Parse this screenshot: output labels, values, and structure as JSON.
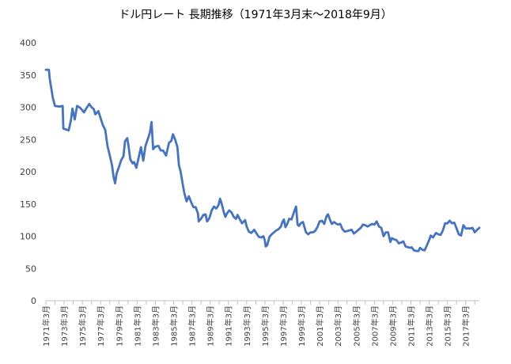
{
  "chart_data": {
    "type": "line",
    "title": "ドル円レート 長期推移（1971年3月末～2018年9月）",
    "xlabel": "",
    "ylabel": "",
    "x_range": [
      "1971-03",
      "2018-09"
    ],
    "ylim": [
      0,
      400
    ],
    "yticks": [
      0,
      50,
      100,
      150,
      200,
      250,
      300,
      350,
      400
    ],
    "xtick_labels": [
      "1971年3月",
      "1973年3月",
      "1975年3月",
      "1977年3月",
      "1979年3月",
      "1981年3月",
      "1983年3月",
      "1985年3月",
      "1987年3月",
      "1989年3月",
      "1991年3月",
      "1993年3月",
      "1995年3月",
      "1997年3月",
      "1999年3月",
      "2001年3月",
      "2003年3月",
      "2005年3月",
      "2007年3月",
      "2009年3月",
      "2011年3月",
      "2013年3月",
      "2015年3月",
      "2017年3月"
    ],
    "grid": false,
    "legend": "none",
    "line_color": "#4472C4",
    "series": [
      {
        "name": "",
        "points": [
          [
            "1971-03",
            358
          ],
          [
            "1971-07",
            358
          ],
          [
            "1971-08",
            345
          ],
          [
            "1971-12",
            315
          ],
          [
            "1972-03",
            302
          ],
          [
            "1972-09",
            301
          ],
          [
            "1973-01",
            302
          ],
          [
            "1973-02",
            267
          ],
          [
            "1973-09",
            264
          ],
          [
            "1973-12",
            280
          ],
          [
            "1974-02",
            298
          ],
          [
            "1974-05",
            281
          ],
          [
            "1974-08",
            302
          ],
          [
            "1974-11",
            300
          ],
          [
            "1975-01",
            298
          ],
          [
            "1975-05",
            292
          ],
          [
            "1975-08",
            298
          ],
          [
            "1975-12",
            305
          ],
          [
            "1976-03",
            300
          ],
          [
            "1976-06",
            297
          ],
          [
            "1976-08",
            289
          ],
          [
            "1976-12",
            294
          ],
          [
            "1977-03",
            283
          ],
          [
            "1977-06",
            272
          ],
          [
            "1977-09",
            265
          ],
          [
            "1977-12",
            240
          ],
          [
            "1978-03",
            225
          ],
          [
            "1978-06",
            210
          ],
          [
            "1978-08",
            192
          ],
          [
            "1978-10",
            182
          ],
          [
            "1978-12",
            197
          ],
          [
            "1979-03",
            207
          ],
          [
            "1979-06",
            218
          ],
          [
            "1979-09",
            224
          ],
          [
            "1979-11",
            247
          ],
          [
            "1980-02",
            252
          ],
          [
            "1980-04",
            237
          ],
          [
            "1980-06",
            219
          ],
          [
            "1980-09",
            213
          ],
          [
            "1980-11",
            215
          ],
          [
            "1981-02",
            206
          ],
          [
            "1981-05",
            222
          ],
          [
            "1981-08",
            238
          ],
          [
            "1981-11",
            217
          ],
          [
            "1982-02",
            240
          ],
          [
            "1982-06",
            254
          ],
          [
            "1982-08",
            262
          ],
          [
            "1982-10",
            277
          ],
          [
            "1982-12",
            235
          ],
          [
            "1983-03",
            239
          ],
          [
            "1983-07",
            240
          ],
          [
            "1983-10",
            233
          ],
          [
            "1984-01",
            233
          ],
          [
            "1984-05",
            225
          ],
          [
            "1984-09",
            245
          ],
          [
            "1984-12",
            248
          ],
          [
            "1985-02",
            258
          ],
          [
            "1985-05",
            250
          ],
          [
            "1985-08",
            238
          ],
          [
            "1985-10",
            210
          ],
          [
            "1985-12",
            201
          ],
          [
            "1986-03",
            180
          ],
          [
            "1986-05",
            167
          ],
          [
            "1986-08",
            154
          ],
          [
            "1986-11",
            162
          ],
          [
            "1987-02",
            153
          ],
          [
            "1987-05",
            145
          ],
          [
            "1987-08",
            145
          ],
          [
            "1987-11",
            135
          ],
          [
            "1987-12",
            123
          ],
          [
            "1988-03",
            127
          ],
          [
            "1988-06",
            133
          ],
          [
            "1988-09",
            134
          ],
          [
            "1988-11",
            123
          ],
          [
            "1989-02",
            128
          ],
          [
            "1989-05",
            140
          ],
          [
            "1989-08",
            146
          ],
          [
            "1989-11",
            143
          ],
          [
            "1990-02",
            148
          ],
          [
            "1990-04",
            158
          ],
          [
            "1990-06",
            151
          ],
          [
            "1990-09",
            137
          ],
          [
            "1990-11",
            130
          ],
          [
            "1991-01",
            135
          ],
          [
            "1991-04",
            140
          ],
          [
            "1991-07",
            137
          ],
          [
            "1991-10",
            130
          ],
          [
            "1992-01",
            127
          ],
          [
            "1992-03",
            133
          ],
          [
            "1992-06",
            126
          ],
          [
            "1992-09",
            120
          ],
          [
            "1993-01",
            125
          ],
          [
            "1993-03",
            115
          ],
          [
            "1993-06",
            107
          ],
          [
            "1993-09",
            105
          ],
          [
            "1994-01",
            110
          ],
          [
            "1994-04",
            104
          ],
          [
            "1994-07",
            99
          ],
          [
            "1994-10",
            98
          ],
          [
            "1995-01",
            100
          ],
          [
            "1995-03",
            93
          ],
          [
            "1995-04",
            84
          ],
          [
            "1995-06",
            86
          ],
          [
            "1995-09",
            99
          ],
          [
            "1995-12",
            103
          ],
          [
            "1996-03",
            106
          ],
          [
            "1996-06",
            109
          ],
          [
            "1996-09",
            111
          ],
          [
            "1996-12",
            115
          ],
          [
            "1997-02",
            122
          ],
          [
            "1997-04",
            126
          ],
          [
            "1997-06",
            114
          ],
          [
            "1997-08",
            118
          ],
          [
            "1997-11",
            127
          ],
          [
            "1998-02",
            126
          ],
          [
            "1998-06",
            140
          ],
          [
            "1998-08",
            146
          ],
          [
            "1998-10",
            118
          ],
          [
            "1998-12",
            116
          ],
          [
            "1999-02",
            120
          ],
          [
            "1999-05",
            122
          ],
          [
            "1999-09",
            106
          ],
          [
            "1999-12",
            103
          ],
          [
            "2000-03",
            106
          ],
          [
            "2000-06",
            106
          ],
          [
            "2000-09",
            108
          ],
          [
            "2000-12",
            114
          ],
          [
            "2001-03",
            123
          ],
          [
            "2001-06",
            124
          ],
          [
            "2001-09",
            119
          ],
          [
            "2001-12",
            131
          ],
          [
            "2002-02",
            134
          ],
          [
            "2002-05",
            124
          ],
          [
            "2002-07",
            119
          ],
          [
            "2002-10",
            122
          ],
          [
            "2002-12",
            120
          ],
          [
            "2003-03",
            118
          ],
          [
            "2003-06",
            119
          ],
          [
            "2003-09",
            111
          ],
          [
            "2003-12",
            107
          ],
          [
            "2004-03",
            108
          ],
          [
            "2004-06",
            109
          ],
          [
            "2004-09",
            110
          ],
          [
            "2004-12",
            104
          ],
          [
            "2005-03",
            107
          ],
          [
            "2005-06",
            110
          ],
          [
            "2005-09",
            113
          ],
          [
            "2005-12",
            118
          ],
          [
            "2006-03",
            117
          ],
          [
            "2006-06",
            115
          ],
          [
            "2006-09",
            117
          ],
          [
            "2006-12",
            119
          ],
          [
            "2007-03",
            118
          ],
          [
            "2007-06",
            123
          ],
          [
            "2007-09",
            115
          ],
          [
            "2007-12",
            113
          ],
          [
            "2008-03",
            100
          ],
          [
            "2008-06",
            106
          ],
          [
            "2008-09",
            106
          ],
          [
            "2008-12",
            91
          ],
          [
            "2009-02",
            97
          ],
          [
            "2009-05",
            95
          ],
          [
            "2009-08",
            94
          ],
          [
            "2009-11",
            89
          ],
          [
            "2010-02",
            90
          ],
          [
            "2010-05",
            92
          ],
          [
            "2010-08",
            84
          ],
          [
            "2010-11",
            83
          ],
          [
            "2011-02",
            82
          ],
          [
            "2011-04",
            83
          ],
          [
            "2011-07",
            78
          ],
          [
            "2011-10",
            77
          ],
          [
            "2012-01",
            77
          ],
          [
            "2012-03",
            82
          ],
          [
            "2012-06",
            79
          ],
          [
            "2012-09",
            78
          ],
          [
            "2012-12",
            86
          ],
          [
            "2013-03",
            94
          ],
          [
            "2013-05",
            101
          ],
          [
            "2013-08",
            98
          ],
          [
            "2013-12",
            105
          ],
          [
            "2014-03",
            103
          ],
          [
            "2014-06",
            102
          ],
          [
            "2014-09",
            109
          ],
          [
            "2014-12",
            120
          ],
          [
            "2015-03",
            120
          ],
          [
            "2015-06",
            124
          ],
          [
            "2015-09",
            120
          ],
          [
            "2015-12",
            121
          ],
          [
            "2016-03",
            112
          ],
          [
            "2016-06",
            103
          ],
          [
            "2016-09",
            101
          ],
          [
            "2016-12",
            117
          ],
          [
            "2017-03",
            112
          ],
          [
            "2017-06",
            112
          ],
          [
            "2017-09",
            112
          ],
          [
            "2017-12",
            113
          ],
          [
            "2018-03",
            106
          ],
          [
            "2018-06",
            110
          ],
          [
            "2018-09",
            113
          ]
        ]
      }
    ]
  }
}
